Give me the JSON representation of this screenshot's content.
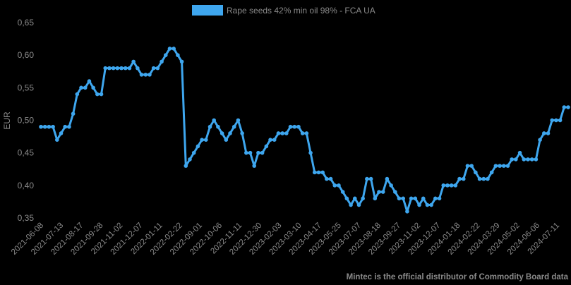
{
  "chart_data": {
    "type": "line",
    "title": "",
    "legend": {
      "label": "Rape seeds  42% min oil 98% - FCA UA",
      "placement": "top-center"
    },
    "ylabel": "EUR",
    "xlabel": "",
    "ylim": [
      0.35,
      0.65
    ],
    "yticks": [
      "0,35",
      "0,40",
      "0,45",
      "0,50",
      "0,55",
      "0,60",
      "0,65"
    ],
    "ytick_values": [
      0.35,
      0.4,
      0.45,
      0.5,
      0.55,
      0.6,
      0.65
    ],
    "xticks": [
      "2021-06-08",
      "2021-07-13",
      "2021-08-17",
      "2021-09-28",
      "2021-11-02",
      "2021-12-07",
      "2022-01-11",
      "2022-02-22",
      "2022-09-01",
      "2022-10-06",
      "2022-11-11",
      "2022-12-30",
      "2023-02-03",
      "2023-03-10",
      "2023-04-17",
      "2023-05-25",
      "2023-07-07",
      "2023-08-18",
      "2023-09-27",
      "2023-11-02",
      "2023-12-07",
      "2024-01-18",
      "2024-02-22",
      "2024-03-29",
      "2024-05-02",
      "2024-06-06",
      "2024-07-11"
    ],
    "grid": false,
    "series": [
      {
        "name": "Rape seeds  42% min oil 98% - FCA UA",
        "color": "#3ea6ee",
        "values": [
          0.49,
          0.49,
          0.49,
          0.49,
          0.47,
          0.48,
          0.49,
          0.49,
          0.51,
          0.54,
          0.55,
          0.55,
          0.56,
          0.55,
          0.54,
          0.54,
          0.58,
          0.58,
          0.58,
          0.58,
          0.58,
          0.58,
          0.58,
          0.59,
          0.58,
          0.57,
          0.57,
          0.57,
          0.58,
          0.58,
          0.59,
          0.6,
          0.61,
          0.61,
          0.6,
          0.59,
          0.43,
          0.44,
          0.45,
          0.46,
          0.47,
          0.47,
          0.49,
          0.5,
          0.49,
          0.48,
          0.47,
          0.48,
          0.49,
          0.5,
          0.48,
          0.45,
          0.45,
          0.43,
          0.45,
          0.45,
          0.46,
          0.47,
          0.47,
          0.48,
          0.48,
          0.48,
          0.49,
          0.49,
          0.49,
          0.48,
          0.48,
          0.45,
          0.42,
          0.42,
          0.42,
          0.41,
          0.41,
          0.4,
          0.4,
          0.39,
          0.38,
          0.37,
          0.38,
          0.37,
          0.38,
          0.41,
          0.41,
          0.38,
          0.39,
          0.39,
          0.41,
          0.4,
          0.39,
          0.38,
          0.38,
          0.36,
          0.38,
          0.38,
          0.37,
          0.38,
          0.37,
          0.37,
          0.38,
          0.38,
          0.4,
          0.4,
          0.4,
          0.4,
          0.41,
          0.41,
          0.43,
          0.43,
          0.42,
          0.41,
          0.41,
          0.41,
          0.42,
          0.43,
          0.43,
          0.43,
          0.43,
          0.44,
          0.44,
          0.45,
          0.44,
          0.44,
          0.44,
          0.44,
          0.47,
          0.48,
          0.48,
          0.5,
          0.5,
          0.5,
          0.52,
          0.52
        ]
      }
    ]
  },
  "footer": "Mintec is the official distributor of Commodity Board data"
}
